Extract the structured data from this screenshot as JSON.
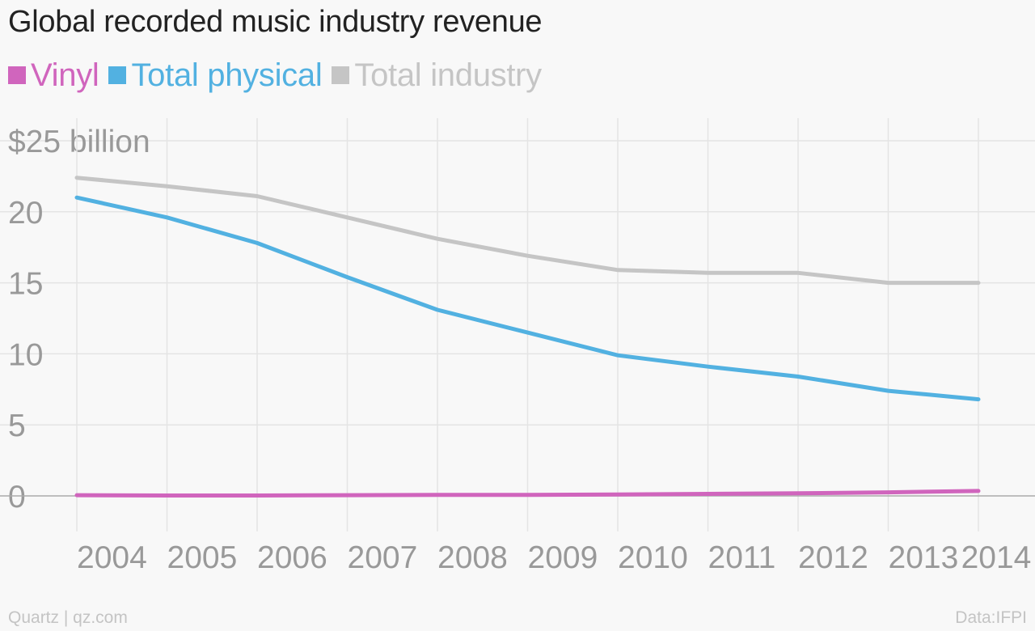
{
  "colors": {
    "background": "#f8f8f8",
    "grid": "#e4e4e4",
    "axis": "#aaaaaa",
    "tick_text": "#999999",
    "title_text": "#222222",
    "footer_text": "#c4c4c4"
  },
  "footer": {
    "source": "Quartz | qz.com",
    "credit": "Data:IFPI"
  },
  "chart_data": {
    "type": "line",
    "title": "Global recorded music industry revenue",
    "xlabel": "",
    "ylabel": "",
    "x": [
      "2004",
      "2005",
      "2006",
      "2007",
      "2008",
      "2009",
      "2010",
      "2011",
      "2012",
      "2013",
      "2014"
    ],
    "ylim": [
      -2.5,
      25
    ],
    "yticks": [
      25,
      20,
      15,
      10,
      5,
      0
    ],
    "ytick_labels": [
      "$25 billion",
      "20",
      "15",
      "10",
      "5",
      "0"
    ],
    "grid": true,
    "legend_position": "top-left",
    "series": [
      {
        "name": "Vinyl",
        "color": "#d065bd",
        "values": [
          0.05,
          0.03,
          0.03,
          0.05,
          0.07,
          0.07,
          0.1,
          0.14,
          0.18,
          0.25,
          0.35
        ]
      },
      {
        "name": "Total physical",
        "color": "#52b1e1",
        "values": [
          21.0,
          19.6,
          17.8,
          15.4,
          13.1,
          11.5,
          9.9,
          9.1,
          8.4,
          7.4,
          6.8
        ]
      },
      {
        "name": "Total industry",
        "color": "#c5c5c5",
        "values": [
          22.4,
          21.8,
          21.1,
          19.6,
          18.1,
          16.9,
          15.9,
          15.7,
          15.7,
          15.0,
          15.0
        ]
      }
    ]
  }
}
